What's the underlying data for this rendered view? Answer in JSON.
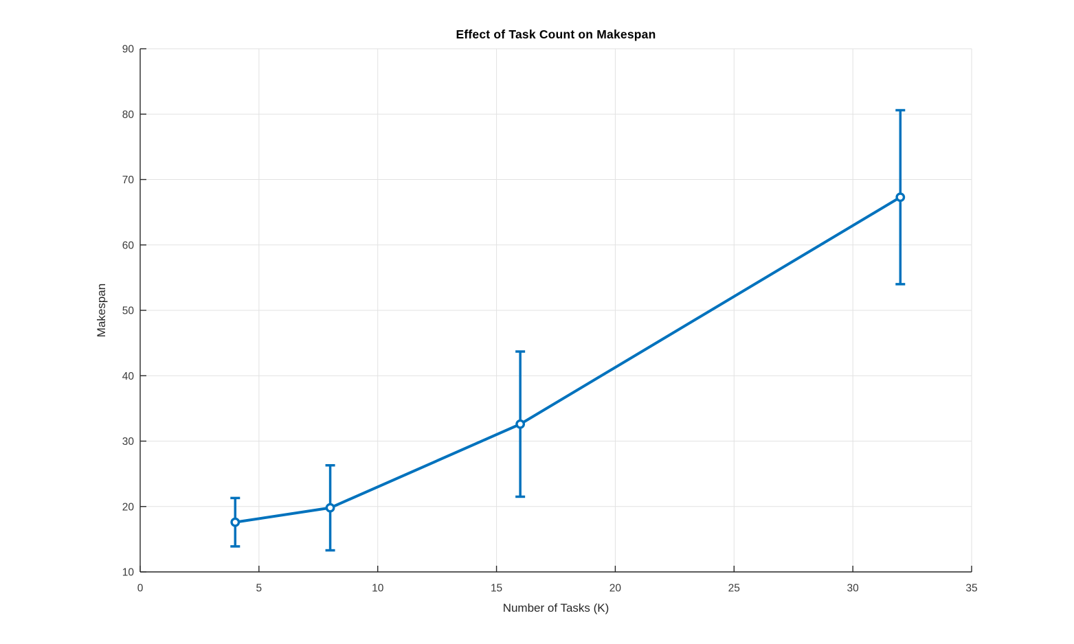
{
  "chart_data": {
    "type": "line",
    "title": "Effect of Task Count on Makespan",
    "xlabel": "Number of Tasks (K)",
    "ylabel": "Makespan",
    "x": [
      4,
      8,
      16,
      32
    ],
    "y": [
      17.6,
      19.8,
      32.6,
      67.3
    ],
    "y_err": [
      3.7,
      6.5,
      11.1,
      13.3
    ],
    "xlim": [
      0,
      35
    ],
    "ylim": [
      10,
      90
    ],
    "x_ticks": [
      0,
      5,
      10,
      15,
      20,
      25,
      30,
      35
    ],
    "y_ticks": [
      10,
      20,
      30,
      40,
      50,
      60,
      70,
      80,
      90
    ],
    "grid": true,
    "marker": "o",
    "legend": null,
    "line_color": "#0072BD",
    "grid_color": "#e2e2e2",
    "axis_color": "#262626",
    "tick_label_color": "#3a3a3a",
    "background_color": "#ffffff"
  }
}
